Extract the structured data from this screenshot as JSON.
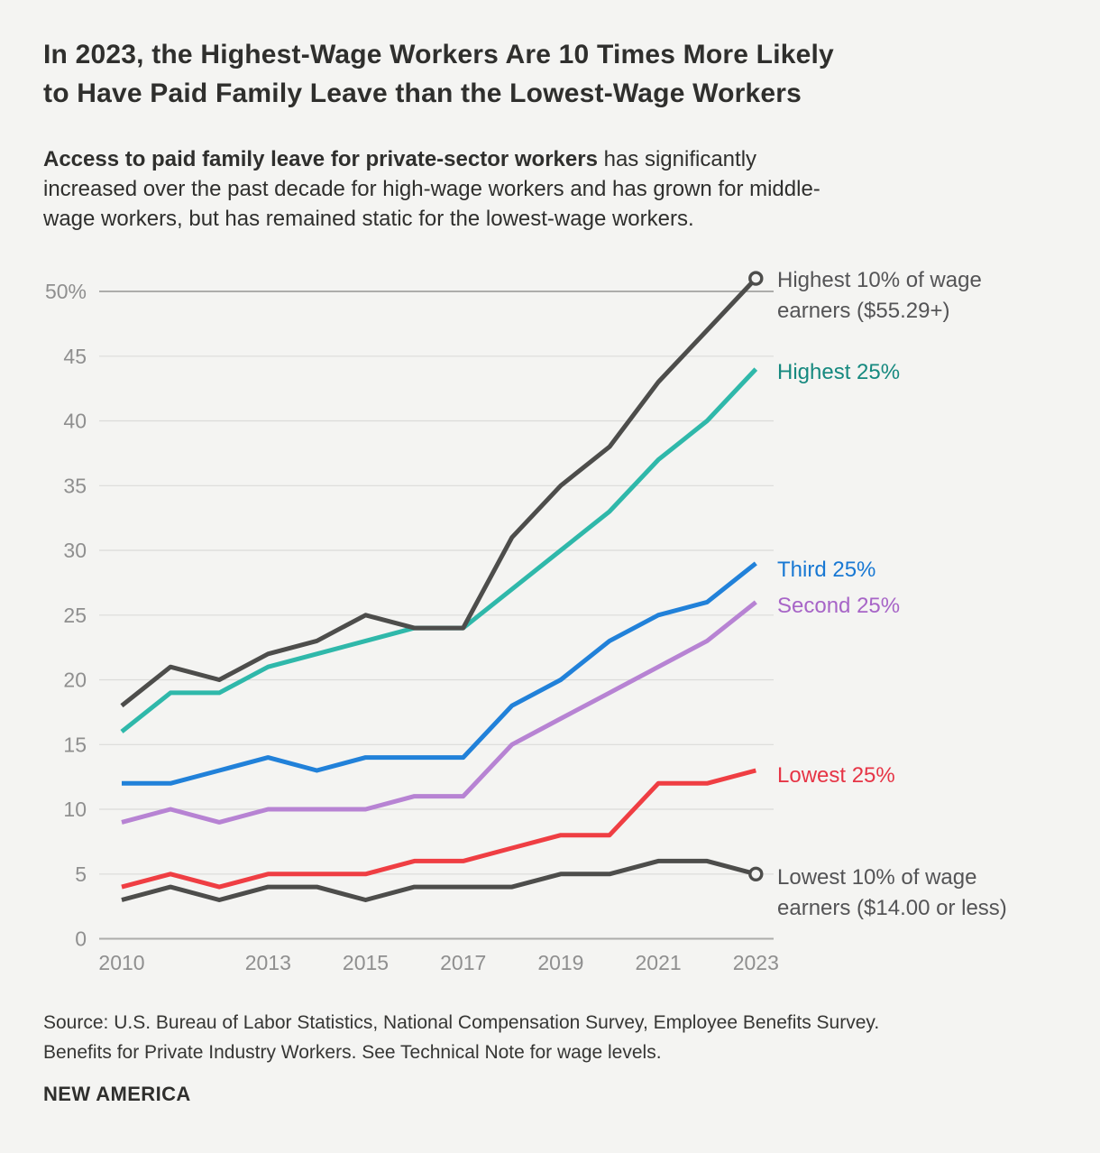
{
  "header": {
    "title_line1": "In 2023, the Highest-Wage Workers Are 10 Times More Likely",
    "title_line2": "to Have Paid Family Leave than the Lowest-Wage Workers",
    "subtitle_bold": "Access to paid family leave for private-sector workers",
    "subtitle_line1_rest": " has significantly",
    "subtitle_line2": "increased over the past decade for high-wage workers and has grown for middle-",
    "subtitle_line3": "wage workers, but has remained static for the lowest-wage workers."
  },
  "chart_data": {
    "type": "line",
    "x": [
      2010,
      2011,
      2012,
      2013,
      2014,
      2015,
      2016,
      2017,
      2018,
      2019,
      2020,
      2021,
      2022,
      2023
    ],
    "x_ticks": [
      {
        "label": "2010",
        "year": 2010
      },
      {
        "label": "2013",
        "year": 2013
      },
      {
        "label": "2015",
        "year": 2015
      },
      {
        "label": "2017",
        "year": 2017
      },
      {
        "label": "2019",
        "year": 2019
      },
      {
        "label": "2021",
        "year": 2021
      },
      {
        "label": "2023",
        "year": 2023
      }
    ],
    "y_ticks": [
      {
        "label": "50%",
        "v": 50
      },
      {
        "label": "45",
        "v": 45
      },
      {
        "label": "40",
        "v": 40
      },
      {
        "label": "35",
        "v": 35
      },
      {
        "label": "30",
        "v": 30
      },
      {
        "label": "25",
        "v": 25
      },
      {
        "label": "20",
        "v": 20
      },
      {
        "label": "15",
        "v": 15
      },
      {
        "label": "10",
        "v": 10
      },
      {
        "label": "5",
        "v": 5
      },
      {
        "label": "0",
        "v": 0
      }
    ],
    "ylim": [
      0,
      51
    ],
    "grid": "horizontal",
    "legend_position": "right-of-line-ends",
    "series": [
      {
        "id": "highest-10",
        "name": "Highest 10% of wage earners ($55.29+)",
        "label_lines": [
          "Highest 10% of wage",
          "earners ($55.29+)"
        ],
        "color": "#4d4d4b",
        "label_color": "#545456",
        "end_marker": true,
        "values": [
          18,
          21,
          20,
          22,
          23,
          25,
          24,
          24,
          31,
          35,
          38,
          43,
          47,
          51
        ]
      },
      {
        "id": "highest-25",
        "name": "Highest 25%",
        "label_lines": [
          "Highest 25%"
        ],
        "color": "#2fb8aa",
        "label_color": "#16897f",
        "end_marker": false,
        "values": [
          16,
          19,
          19,
          21,
          22,
          23,
          24,
          24,
          27,
          30,
          33,
          37,
          40,
          44
        ]
      },
      {
        "id": "third-25",
        "name": "Third 25%",
        "label_lines": [
          "Third 25%"
        ],
        "color": "#2181d9",
        "label_color": "#1878d3",
        "end_marker": false,
        "values": [
          12,
          12,
          13,
          14,
          13,
          14,
          14,
          14,
          18,
          20,
          23,
          25,
          26,
          29
        ]
      },
      {
        "id": "second-25",
        "name": "Second 25%",
        "label_lines": [
          "Second 25%"
        ],
        "color": "#b783d3",
        "label_color": "#a765c7",
        "end_marker": false,
        "values": [
          9,
          10,
          9,
          10,
          10,
          10,
          11,
          11,
          15,
          17,
          19,
          21,
          23,
          26
        ]
      },
      {
        "id": "lowest-25",
        "name": "Lowest 25%",
        "label_lines": [
          "Lowest 25%"
        ],
        "color": "#ef3e43",
        "label_color": "#e63546",
        "end_marker": false,
        "values": [
          4,
          5,
          4,
          5,
          5,
          5,
          6,
          6,
          7,
          8,
          8,
          12,
          12,
          13
        ]
      },
      {
        "id": "lowest-10",
        "name": "Lowest 10% of wage earners ($14.00 or less)",
        "label_lines": [
          "Lowest 10% of wage",
          "earners ($14.00 or less)"
        ],
        "color": "#4d4d4b",
        "label_color": "#545456",
        "end_marker": true,
        "values": [
          3,
          4,
          3,
          4,
          4,
          3,
          4,
          4,
          4,
          5,
          5,
          6,
          6,
          5
        ]
      }
    ]
  },
  "footer": {
    "source_line1": "Source: U.S. Bureau of Labor Statistics, National Compensation Survey, Employee Benefits Survey.",
    "source_line2": "Benefits for Private Industry Workers. See Technical Note for wage levels.",
    "brand": "NEW AMERICA"
  }
}
